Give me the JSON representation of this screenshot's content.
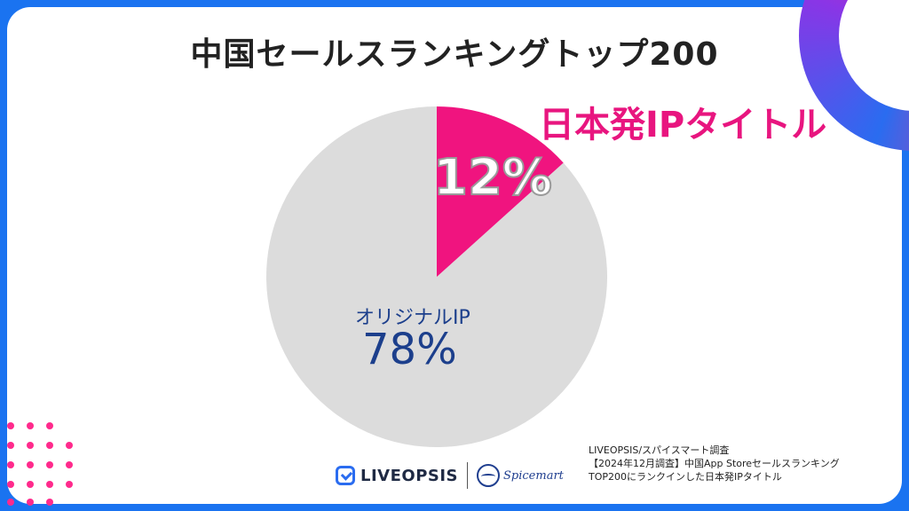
{
  "title": "中国セールスランキングトップ200",
  "chart_data": {
    "type": "pie",
    "title": "中国セールスランキングトップ200",
    "slices": [
      {
        "label": "日本発IPタイトル",
        "value": 12,
        "display": "12%",
        "color": "#f0147f"
      },
      {
        "label": "オリジナルIP",
        "value": 78,
        "display": "78%",
        "color": "#dcdcdc"
      }
    ],
    "start_angle_deg": 0,
    "direction": "clockwise"
  },
  "logos": {
    "liveopsis": "LIVEOPSIS",
    "spicemart": "Spicemart"
  },
  "source": {
    "line1": "LIVEOPSIS/スパイスマート調査",
    "line2": "【2024年12月調査】中国App Storeセールスランキング",
    "line3": "TOP200にランクインした日本発IPタイトル"
  },
  "colors": {
    "frame": "#1a73f0",
    "accent_pink": "#e8157f",
    "label_blue": "#1c3f8c"
  }
}
